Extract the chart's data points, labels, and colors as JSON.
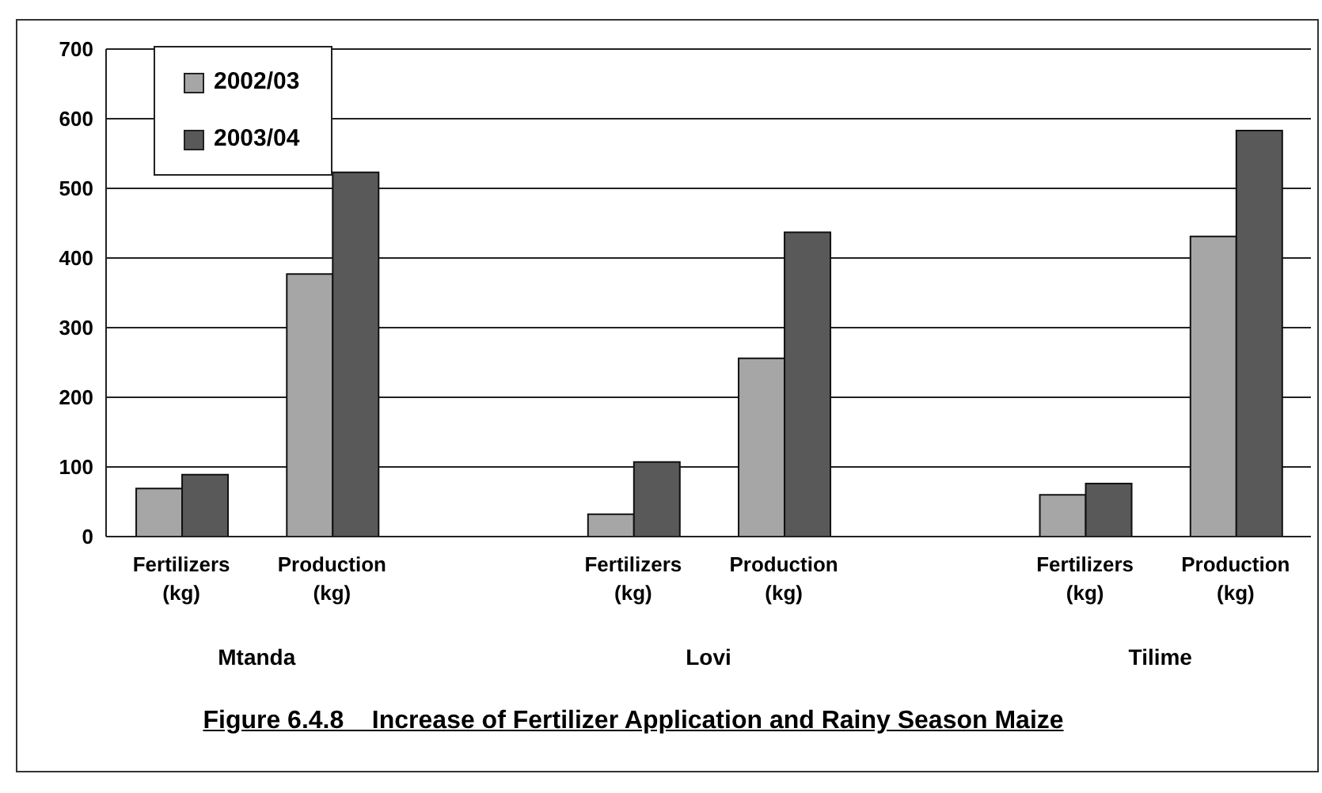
{
  "chart_data": {
    "type": "bar",
    "title": "Figure 6.4.8    Increase of Fertilizer Application and Rainy Season Maize",
    "categories": [
      "Fertilizers (kg)",
      "Production (kg)",
      null,
      "Fertilizers (kg)",
      "Production (kg)",
      null,
      "Fertilizers (kg)",
      "Production (kg)"
    ],
    "series": [
      {
        "name": "2002/03",
        "color": "#a6a6a6",
        "values": [
          69,
          377,
          null,
          32,
          256,
          null,
          60,
          431
        ]
      },
      {
        "name": "2003/04",
        "color": "#595959",
        "values": [
          89,
          523,
          null,
          107,
          437,
          null,
          76,
          583
        ]
      }
    ],
    "annotations": [
      "Mtanda",
      "Lovi",
      "Tilime"
    ],
    "ylim": [
      0,
      700
    ],
    "yticks": [
      0,
      100,
      200,
      300,
      400,
      500,
      600,
      700
    ],
    "grid": "y",
    "legend": "top left"
  }
}
